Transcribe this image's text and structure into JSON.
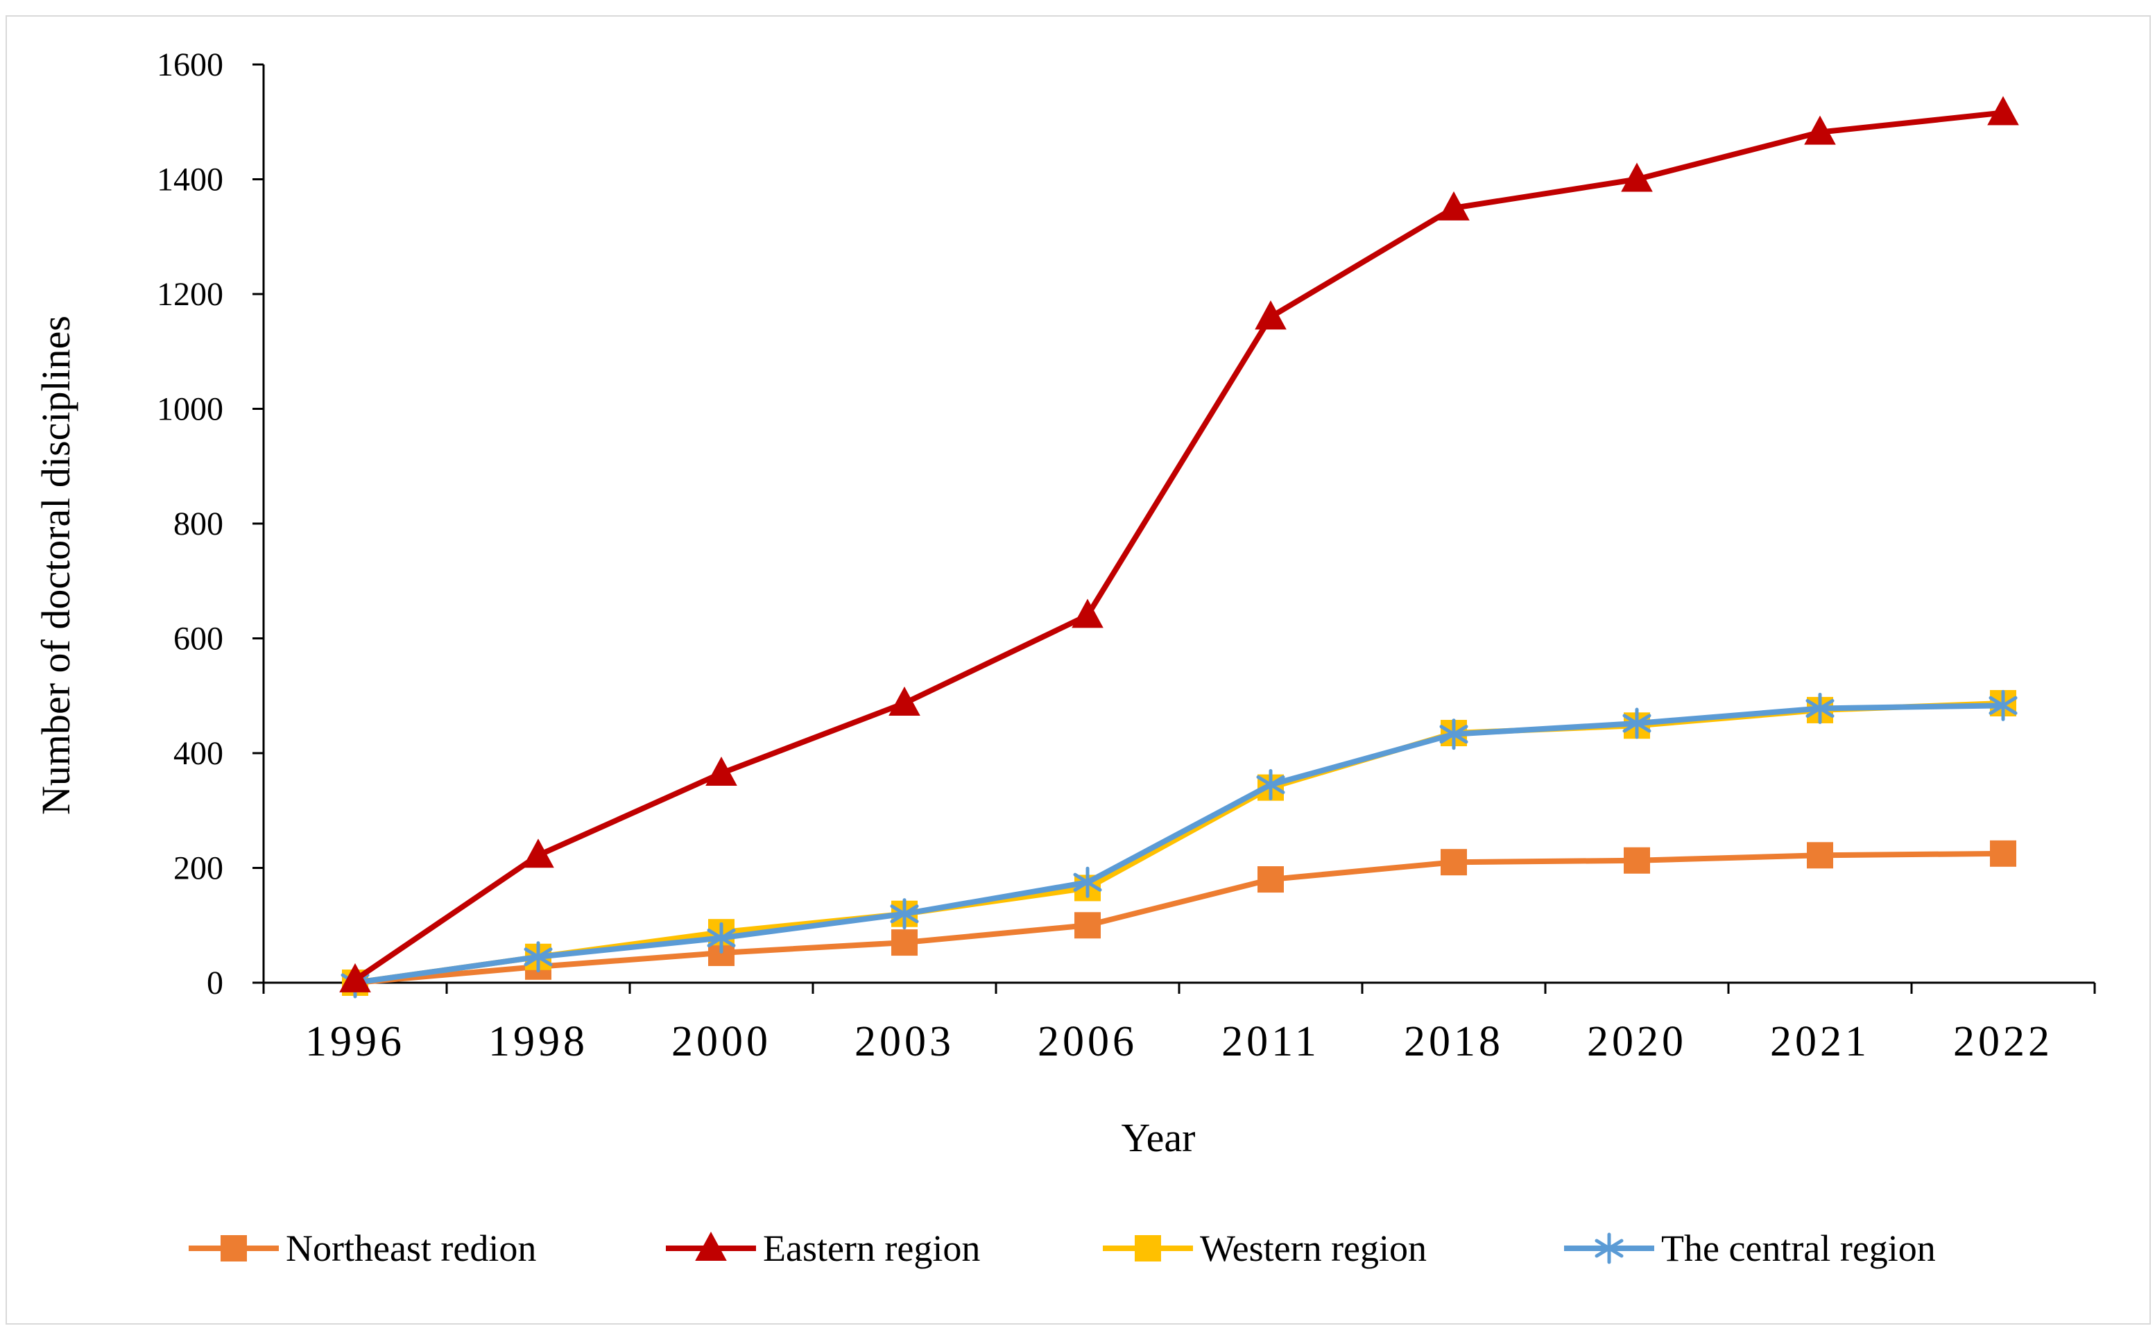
{
  "chart_data": {
    "type": "line",
    "title": "",
    "xlabel": "Year",
    "ylabel": "Number of doctoral  disciplines",
    "categories": [
      "1996",
      "1998",
      "2000",
      "2003",
      "2006",
      "2011",
      "2018",
      "2020",
      "2021",
      "2022"
    ],
    "ylim": [
      0,
      1600
    ],
    "yticks": [
      0,
      200,
      400,
      600,
      800,
      1000,
      1200,
      1400,
      1600
    ],
    "ytick_labels": [
      "0",
      "200",
      "400",
      "600",
      "800",
      "1000",
      "1200",
      "1400",
      "1600"
    ],
    "grid": false,
    "legend_position": "bottom",
    "series": [
      {
        "name": "Northeast redion",
        "color": "#ED7D31",
        "marker": "square",
        "values": [
          0,
          28,
          52,
          70,
          100,
          180,
          210,
          213,
          222,
          225
        ]
      },
      {
        "name": "Eastern region",
        "color": "#C00000",
        "marker": "triangle",
        "values": [
          5,
          222,
          365,
          487,
          640,
          1160,
          1350,
          1400,
          1482,
          1516
        ]
      },
      {
        "name": "Western region",
        "color": "#FFC000",
        "marker": "square",
        "values": [
          0,
          45,
          88,
          120,
          165,
          340,
          435,
          448,
          475,
          487
        ]
      },
      {
        "name": "The central region",
        "color": "#5B9BD5",
        "marker": "asterisk",
        "values": [
          0,
          45,
          78,
          120,
          175,
          345,
          433,
          452,
          478,
          483
        ]
      }
    ]
  }
}
